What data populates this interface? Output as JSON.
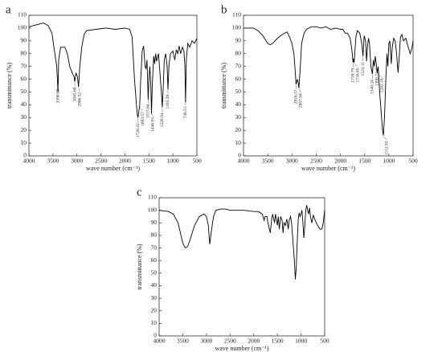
{
  "chart_data": [
    {
      "type": "line",
      "title": "a",
      "xlabel": "wave number (cm⁻¹)",
      "ylabel": "transmittance (%)",
      "color": "#000000",
      "x": [
        4000,
        3900,
        3800,
        3700,
        3600,
        3520,
        3460,
        3420,
        3395,
        3380,
        3340,
        3250,
        3200,
        3150,
        3100,
        3060,
        3045,
        3020,
        2990,
        2966,
        2940,
        2900,
        2850,
        2800,
        2600,
        2400,
        2200,
        2000,
        1900,
        1850,
        1800,
        1760,
        1740,
        1728,
        1710,
        1693,
        1670,
        1640,
        1610,
        1580,
        1560,
        1540,
        1515,
        1500,
        1480,
        1460,
        1446,
        1430,
        1400,
        1380,
        1360,
        1340,
        1300,
        1260,
        1240,
        1221,
        1200,
        1180,
        1150,
        1120,
        1103,
        1080,
        1050,
        1000,
        960,
        930,
        900,
        870,
        840,
        800,
        770,
        750,
        736,
        720,
        690,
        650,
        600,
        550,
        500
      ],
      "values": [
        101,
        102,
        103,
        104,
        102,
        96,
        80,
        70,
        50,
        75,
        85,
        85,
        80,
        70,
        65,
        62,
        58,
        65,
        62,
        54,
        70,
        85,
        95,
        98,
        99,
        100,
        99,
        100,
        99,
        93,
        60,
        40,
        32,
        30,
        35,
        39,
        60,
        82,
        86,
        70,
        68,
        75,
        44,
        60,
        70,
        55,
        33,
        55,
        78,
        72,
        80,
        74,
        80,
        60,
        50,
        38,
        55,
        75,
        80,
        70,
        52,
        72,
        80,
        82,
        75,
        83,
        80,
        86,
        80,
        85,
        82,
        70,
        42,
        75,
        88,
        85,
        90,
        88,
        92
      ],
      "xlim": [
        4000,
        500
      ],
      "xticks": [
        4000,
        3500,
        3000,
        2500,
        2000,
        1500,
        1000,
        500
      ],
      "ylim": [
        0,
        110
      ],
      "yticks": [
        0,
        10,
        20,
        30,
        40,
        50,
        60,
        70,
        80,
        90,
        100,
        110
      ],
      "annotations": [
        {
          "label": "3390.88",
          "x": 3390.88
        },
        {
          "label": "3045.60",
          "x": 3045.6
        },
        {
          "label": "2966.52",
          "x": 2966.52
        },
        {
          "label": "1728.22",
          "x": 1728.22
        },
        {
          "label": "1693.57",
          "x": 1693.57
        },
        {
          "label": "1515.84",
          "x": 1515.84
        },
        {
          "label": "1446.93",
          "x": 1446.93
        },
        {
          "label": "1220.94",
          "x": 1220.94
        },
        {
          "label": "1103.28",
          "x": 1103.28
        },
        {
          "label": "736.51",
          "x": 736.51
        }
      ]
    },
    {
      "type": "line",
      "title": "b",
      "xlabel": "wave number (cm⁻¹)",
      "ylabel": "transmittance (%)",
      "color": "#000000",
      "x": [
        4000,
        3800,
        3700,
        3600,
        3500,
        3450,
        3400,
        3300,
        3200,
        3100,
        3050,
        3000,
        2960,
        2930,
        2916,
        2890,
        2870,
        2857,
        2830,
        2800,
        2750,
        2700,
        2600,
        2500,
        2400,
        2300,
        2200,
        2100,
        2000,
        1950,
        1900,
        1850,
        1800,
        1770,
        1750,
        1740,
        1730,
        1717,
        1700,
        1680,
        1650,
        1600,
        1560,
        1533,
        1510,
        1480,
        1460,
        1440,
        1420,
        1400,
        1370,
        1350,
        1340,
        1320,
        1300,
        1280,
        1260,
        1242,
        1220,
        1190,
        1150,
        1130,
        1113,
        1090,
        1060,
        1040,
        1020,
        1000,
        980,
        950,
        930,
        900,
        870,
        840,
        810,
        790,
        760,
        730,
        700,
        650,
        600,
        560,
        520,
        500
      ],
      "values": [
        100,
        100,
        98,
        94,
        88,
        87,
        88,
        92,
        95,
        97,
        93,
        88,
        80,
        65,
        56,
        60,
        57,
        53,
        68,
        88,
        96,
        99,
        101,
        101,
        100,
        101,
        99,
        100,
        99,
        99,
        96,
        96,
        92,
        85,
        78,
        73,
        76,
        73,
        82,
        93,
        98,
        96,
        88,
        78,
        94,
        90,
        74,
        86,
        92,
        88,
        70,
        66,
        64,
        75,
        70,
        78,
        72,
        65,
        70,
        50,
        30,
        20,
        16,
        30,
        62,
        80,
        70,
        88,
        90,
        72,
        85,
        92,
        90,
        80,
        65,
        75,
        93,
        95,
        90,
        92,
        85,
        80,
        85,
        90
      ],
      "xlim": [
        4000,
        500
      ],
      "xticks": [
        4000,
        3500,
        3000,
        2500,
        2000,
        1500,
        1000,
        500
      ],
      "ylim": [
        0,
        110
      ],
      "yticks": [
        0,
        10,
        20,
        30,
        40,
        50,
        60,
        70,
        80,
        90,
        100,
        110
      ],
      "annotations": [
        {
          "label": "2916.37",
          "x": 2916.37
        },
        {
          "label": "2857.84",
          "x": 2857.84
        },
        {
          "label": "1739.79",
          "x": 1739.79
        },
        {
          "label": "1716.65",
          "x": 1716.65
        },
        {
          "label": "1533.11",
          "x": 1533.11
        },
        {
          "label": "1340.24",
          "x": 1340.24
        },
        {
          "label": "1300.71",
          "x": 1300.71
        },
        {
          "label": "1242.16",
          "x": 1242.16
        },
        {
          "label": "1112.93",
          "x": 1112.93
        }
      ]
    },
    {
      "type": "line",
      "title": "c",
      "xlabel": "wave number (cm⁻¹)",
      "ylabel": "transmittance (%)",
      "color": "#000000",
      "x": [
        4000,
        3800,
        3700,
        3600,
        3550,
        3500,
        3450,
        3400,
        3350,
        3250,
        3150,
        3050,
        3000,
        2960,
        2930,
        2900,
        2870,
        2850,
        2800,
        2700,
        2600,
        2500,
        2400,
        2200,
        2000,
        1900,
        1820,
        1780,
        1760,
        1720,
        1700,
        1650,
        1620,
        1600,
        1560,
        1540,
        1500,
        1480,
        1460,
        1430,
        1400,
        1380,
        1360,
        1330,
        1300,
        1270,
        1250,
        1220,
        1200,
        1170,
        1140,
        1120,
        1100,
        1080,
        1060,
        1040,
        1020,
        1000,
        980,
        960,
        940,
        920,
        900,
        880,
        860,
        840,
        820,
        800,
        770,
        740,
        700,
        650,
        600,
        560,
        530,
        510,
        500
      ],
      "values": [
        100,
        99,
        97,
        90,
        82,
        74,
        70,
        71,
        76,
        88,
        95,
        97,
        95,
        88,
        73,
        82,
        90,
        95,
        100,
        101,
        101,
        100,
        100,
        100,
        99,
        99,
        97,
        92,
        95,
        95,
        90,
        82,
        93,
        97,
        90,
        97,
        88,
        95,
        85,
        95,
        92,
        82,
        90,
        88,
        93,
        85,
        92,
        95,
        90,
        75,
        60,
        45,
        55,
        75,
        92,
        98,
        95,
        97,
        100,
        90,
        78,
        88,
        100,
        104,
        100,
        97,
        102,
        95,
        90,
        96,
        92,
        88,
        85,
        85,
        90,
        97,
        100
      ],
      "xlim": [
        4000,
        500
      ],
      "xticks": [
        4000,
        3500,
        3000,
        2500,
        2000,
        1500,
        1000,
        500
      ],
      "ylim": [
        0,
        110
      ],
      "yticks": [
        0,
        10,
        20,
        30,
        40,
        50,
        60,
        70,
        80,
        90,
        100,
        110
      ],
      "annotations": []
    }
  ]
}
